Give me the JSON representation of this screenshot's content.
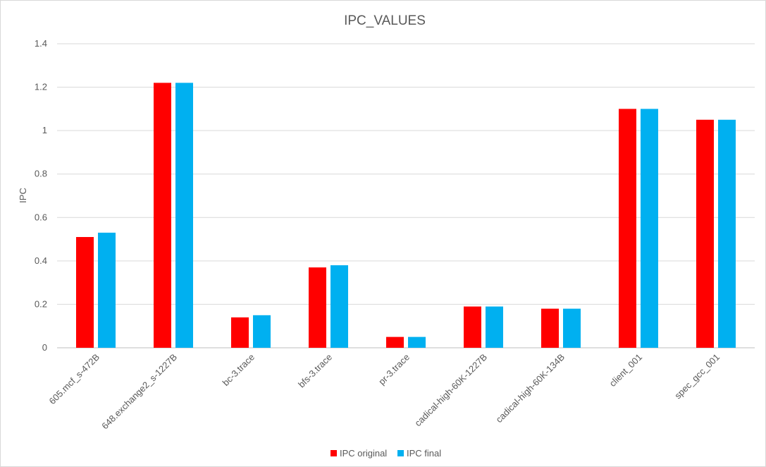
{
  "chart_data": {
    "type": "bar",
    "title": "IPC_VALUES",
    "xlabel": "",
    "ylabel": "IPC",
    "ylim": [
      0,
      1.4
    ],
    "yticks": [
      "0",
      "0.2",
      "0.4",
      "0.6",
      "0.8",
      "1",
      "1.2",
      "1.4"
    ],
    "ytick_values": [
      0,
      0.2,
      0.4,
      0.6,
      0.8,
      1.0,
      1.2,
      1.4
    ],
    "grid": true,
    "legend_position": "bottom",
    "categories": [
      "605.mcf_s-472B",
      "648.exchange2_s-1227B",
      "bc-3.trace",
      "bfs-3.trace",
      "pr-3.trace",
      "cadical-high-60K-1227B",
      "cadical-high-60K-134B",
      "client_001",
      "spec_gcc_001"
    ],
    "series": [
      {
        "name": "IPC original",
        "color": "#ff0000",
        "values": [
          0.51,
          1.22,
          0.14,
          0.37,
          0.05,
          0.19,
          0.18,
          1.1,
          1.05
        ]
      },
      {
        "name": "IPC final",
        "color": "#00b0f0",
        "values": [
          0.53,
          1.22,
          0.15,
          0.38,
          0.05,
          0.19,
          0.18,
          1.1,
          1.05
        ]
      }
    ]
  }
}
